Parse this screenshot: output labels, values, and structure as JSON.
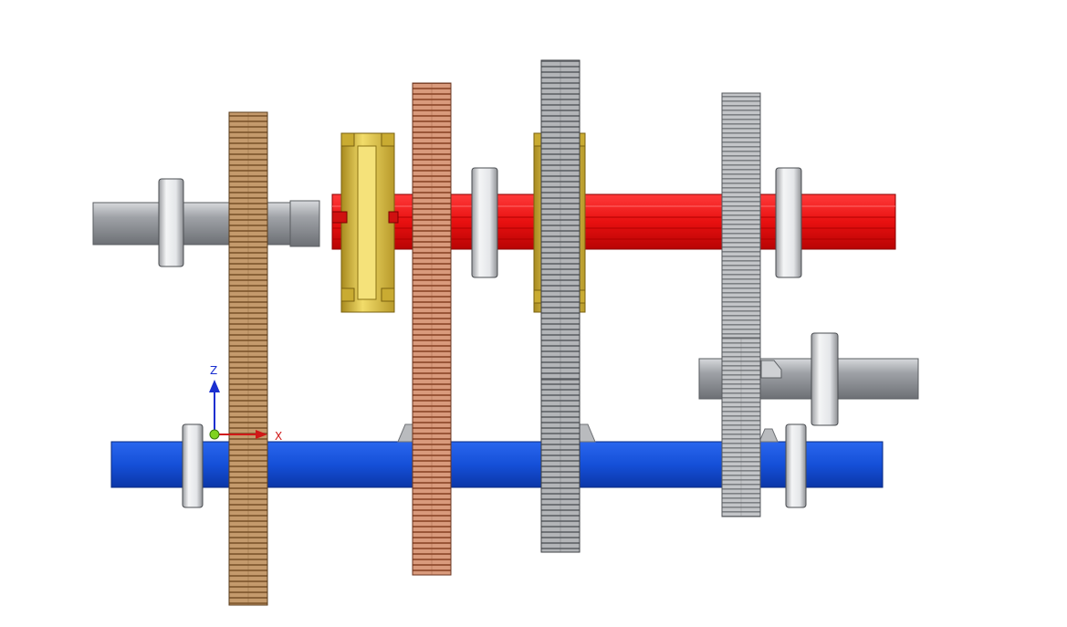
{
  "viewport": {
    "background": "#ffffff"
  },
  "triad": {
    "z_label": "Z",
    "x_label": "X",
    "z_color": "#1a2fd0",
    "x_color": "#d01818",
    "origin_color": "#7fd321"
  },
  "colors": {
    "red_shaft": "#e81010",
    "blue_shaft": "#1550d8",
    "gray_shaft": "#a3a6ab",
    "bearing": "#e4e6e9",
    "bronze_gear": "#b88a5c",
    "copper_gear": "#c98a6a",
    "gold_synchro": "#e3c84a",
    "steel_gear": "#a9abaf",
    "light_steel_gear": "#b9bbbe"
  }
}
